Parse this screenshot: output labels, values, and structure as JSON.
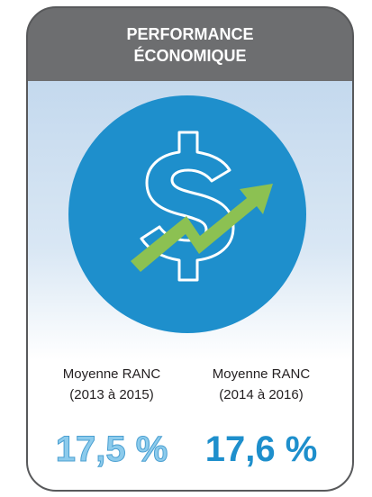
{
  "header": {
    "title_lines": [
      "PERFORMANCE",
      "ÉCONOMIQUE"
    ]
  },
  "stats": [
    {
      "label": "Moyenne RANC",
      "period": "(2013 à 2015)",
      "value": "17,5 %"
    },
    {
      "label": "Moyenne RANC",
      "period": "(2014 à 2016)",
      "value": "17,6 %"
    }
  ]
}
